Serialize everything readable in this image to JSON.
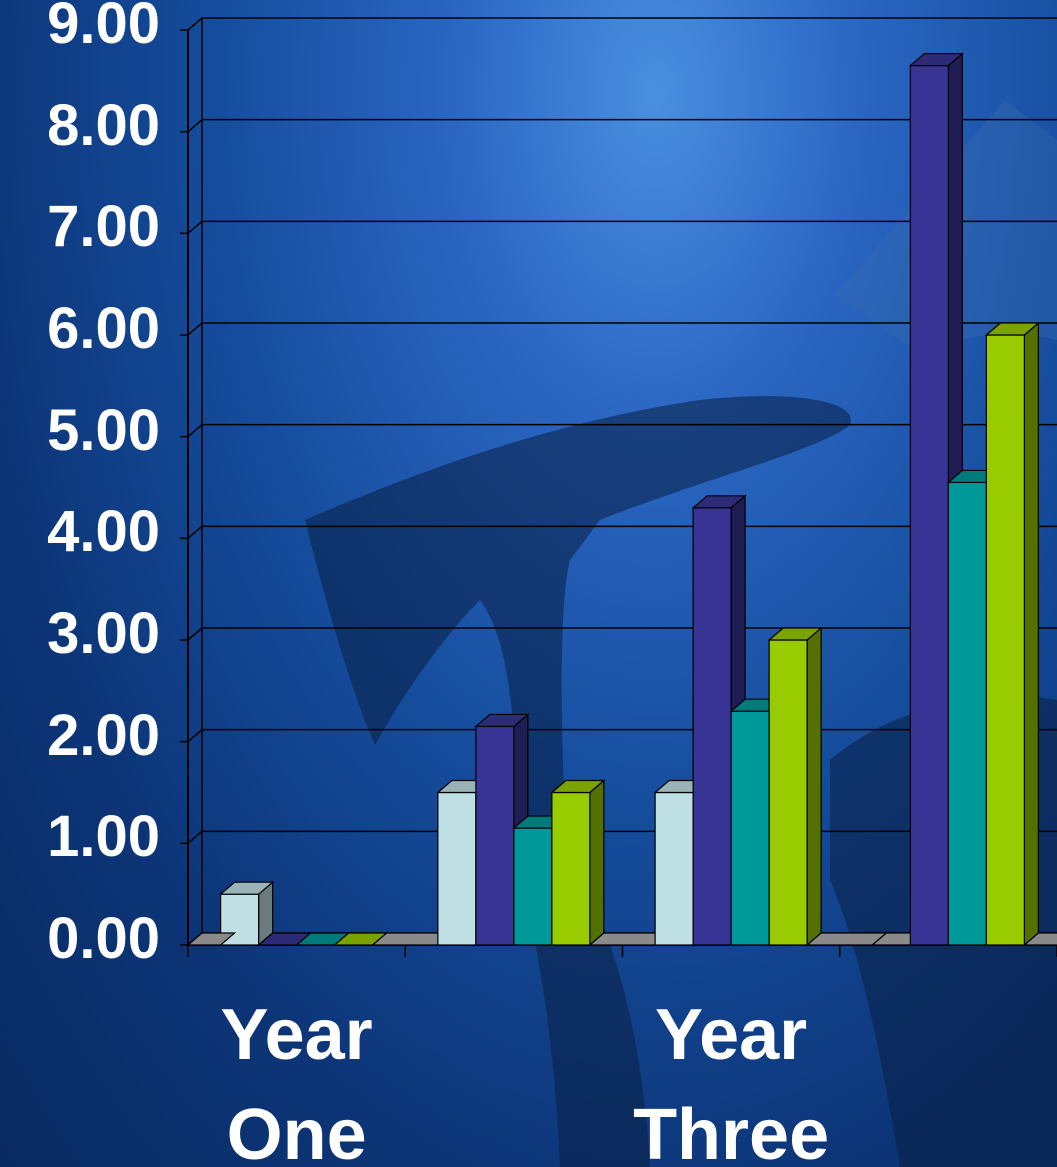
{
  "chart_data": {
    "type": "bar",
    "title": "",
    "xlabel": "",
    "ylabel": "",
    "ylim": [
      0,
      9
    ],
    "y_ticks": [
      "0.00",
      "1.00",
      "2.00",
      "3.00",
      "4.00",
      "5.00",
      "6.00",
      "7.00",
      "8.00",
      "9.00"
    ],
    "categories": [
      "Year One",
      "",
      "Year Three",
      ""
    ],
    "category_label_lines": [
      [
        "Year",
        "One"
      ],
      [
        "",
        ""
      ],
      [
        "Year",
        "Three"
      ],
      [
        "",
        ""
      ]
    ],
    "grid": true,
    "legend": "none",
    "style": "3d-clustered-columns",
    "series": [
      {
        "color": "#bfe0e4",
        "values": [
          0.5,
          1.5,
          1.5,
          0.0
        ]
      },
      {
        "color": "#383496",
        "values": [
          0.0,
          2.15,
          4.3,
          8.65
        ]
      },
      {
        "color": "#009999",
        "values": [
          0.0,
          1.15,
          2.3,
          4.55
        ]
      },
      {
        "color": "#99cc00",
        "values": [
          0.0,
          1.5,
          3.0,
          6.0
        ]
      }
    ]
  }
}
